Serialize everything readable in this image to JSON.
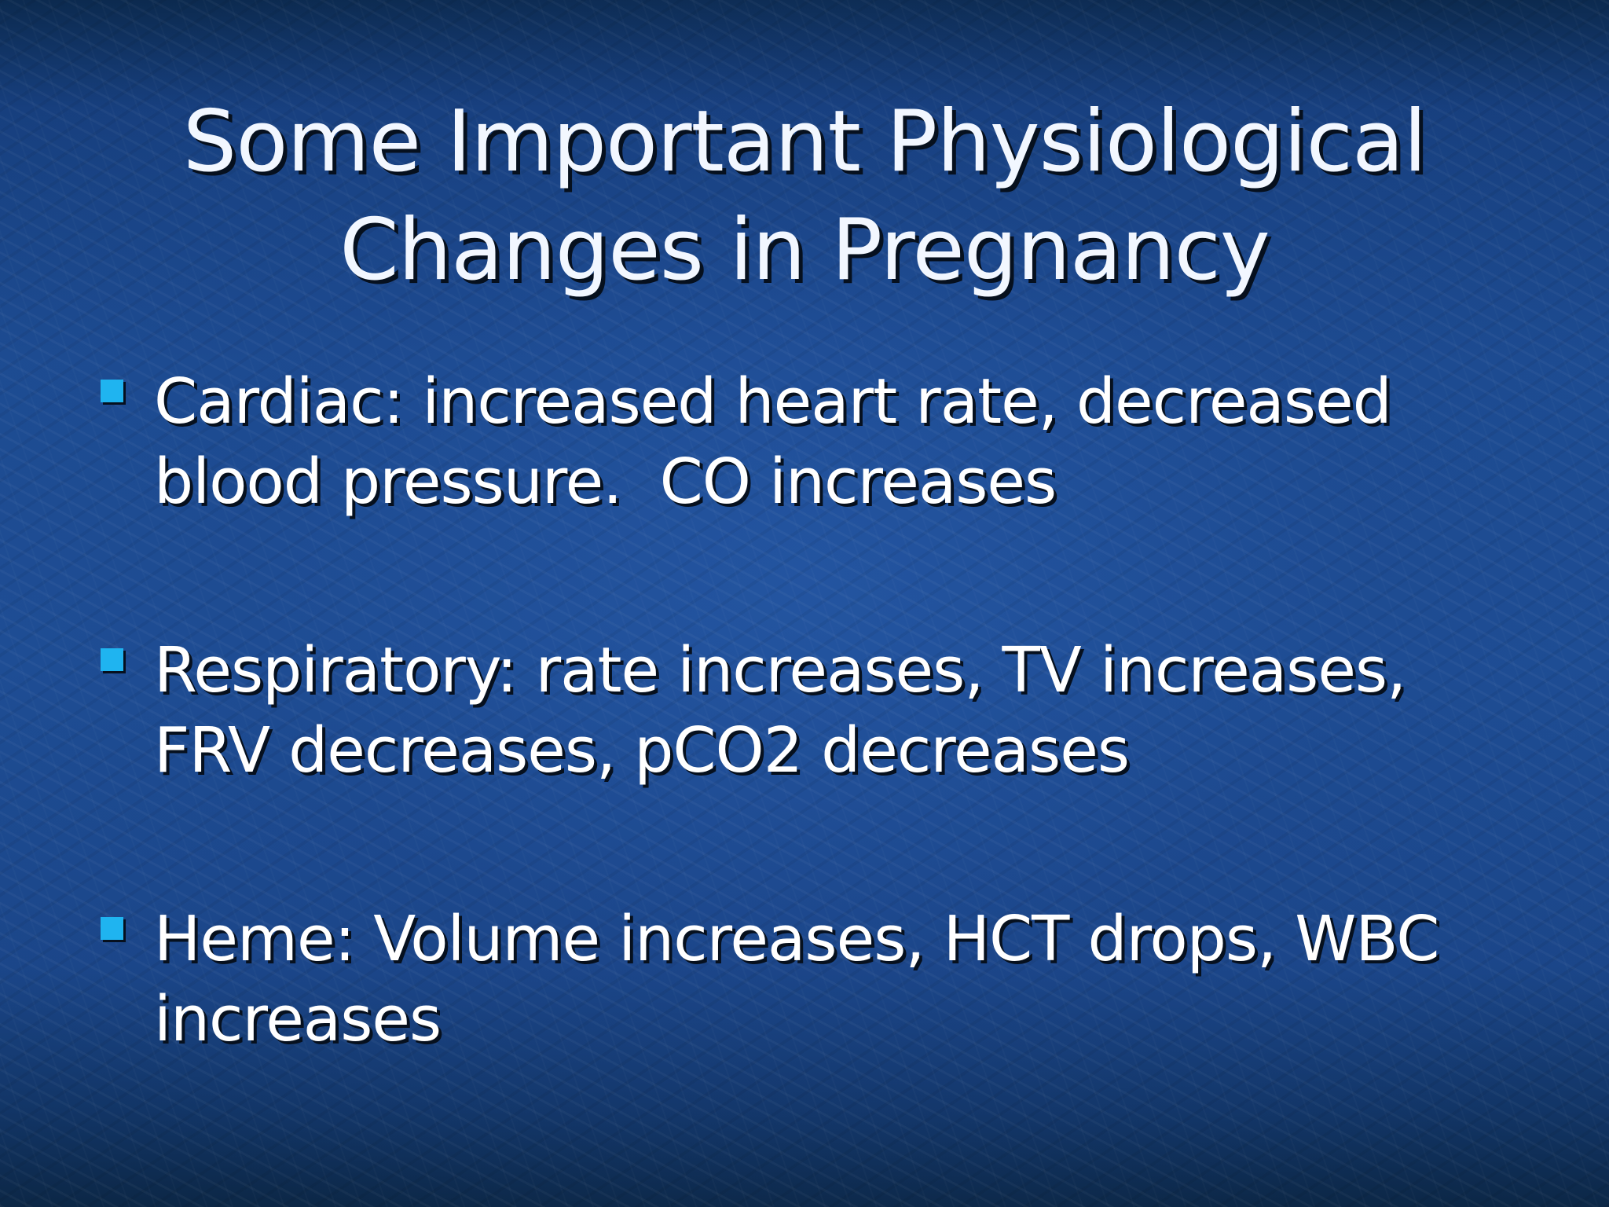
{
  "slide": {
    "title_line_1": "Some Important Physiological",
    "title_line_2": "Changes in Pregnancy",
    "bullets": [
      {
        "text": "Cardiac: increased heart rate, decreased blood pressure.  CO increases"
      },
      {
        "text": "Respiratory: rate increases, TV increases, FRV decreases, pCO2 decreases"
      },
      {
        "text": "Heme: Volume increases, HCT drops, WBC increases"
      }
    ]
  },
  "colors": {
    "background": "#1e4e95",
    "title_text": "#f2f7ff",
    "body_text": "#ffffff",
    "bullet_marker": "#1fb4f0",
    "text_shadow": "#06101e"
  }
}
